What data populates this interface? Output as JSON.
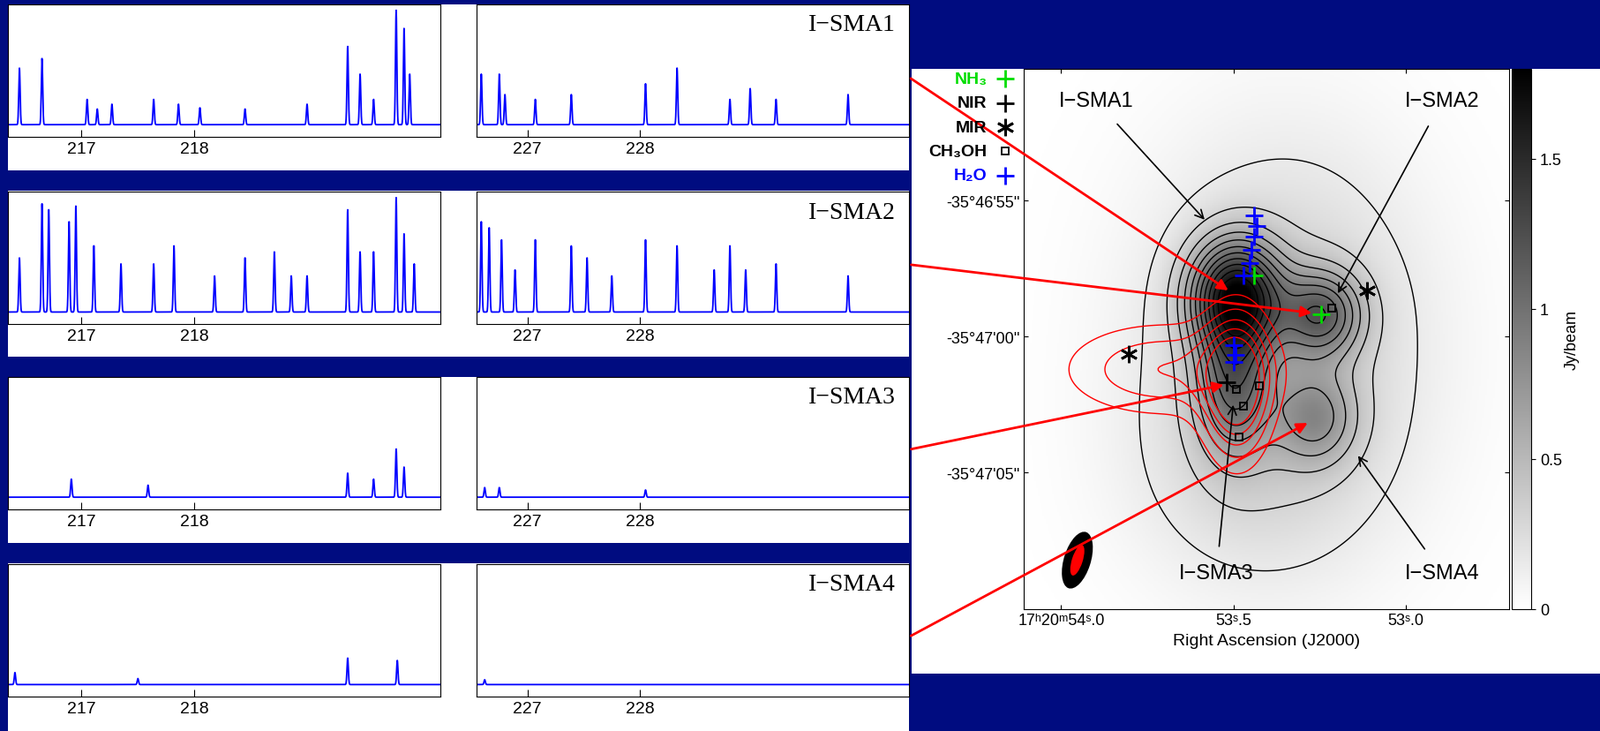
{
  "chart_data": [
    {
      "type": "spectrum",
      "color": "#0000ff",
      "xlim": [
        216.35,
        220.18
      ],
      "xticks": [
        217,
        218
      ],
      "ylim": [
        -0.1,
        1.0
      ],
      "tick_labels": "x",
      "x": [
        216.45,
        216.65,
        217.05,
        217.14,
        217.27,
        217.64,
        217.86,
        218.05,
        218.45,
        219.0,
        219.36,
        219.47,
        219.59,
        219.79,
        219.86,
        219.91
      ],
      "values": [
        0.47,
        0.55,
        0.21,
        0.13,
        0.17,
        0.21,
        0.17,
        0.14,
        0.13,
        0.17,
        0.65,
        0.42,
        0.21,
        0.95,
        0.8,
        0.42
      ]
    },
    {
      "type": "spectrum",
      "title": "I−SMA1",
      "color": "#0000ff",
      "xlim": [
        226.55,
        230.39
      ],
      "xticks": [
        227,
        228
      ],
      "ylim": [
        -0.1,
        1.0
      ],
      "tick_labels": "x",
      "x": [
        226.59,
        226.75,
        226.8,
        227.07,
        227.39,
        228.05,
        228.33,
        228.8,
        228.98,
        229.21,
        229.85
      ],
      "values": [
        0.42,
        0.42,
        0.25,
        0.21,
        0.25,
        0.34,
        0.47,
        0.21,
        0.3,
        0.21,
        0.25
      ]
    },
    {
      "type": "spectrum",
      "color": "#0000ff",
      "xlim": [
        216.35,
        220.18
      ],
      "xticks": [
        217,
        218
      ],
      "ylim": [
        -0.1,
        1.0
      ],
      "tick_labels": "x",
      "x": [
        216.45,
        216.65,
        216.71,
        216.89,
        216.95,
        217.11,
        217.35,
        217.64,
        217.82,
        218.18,
        218.45,
        218.71,
        218.86,
        219.0,
        219.36,
        219.47,
        219.59,
        219.79,
        219.86,
        219.95
      ],
      "values": [
        0.45,
        0.9,
        0.85,
        0.75,
        0.88,
        0.55,
        0.4,
        0.4,
        0.55,
        0.3,
        0.45,
        0.5,
        0.3,
        0.3,
        0.85,
        0.5,
        0.5,
        0.95,
        0.65,
        0.4
      ]
    },
    {
      "type": "spectrum",
      "title": "I−SMA2",
      "color": "#0000ff",
      "xlim": [
        226.55,
        230.39
      ],
      "xticks": [
        227,
        228
      ],
      "ylim": [
        -0.1,
        1.0
      ],
      "tick_labels": "x",
      "x": [
        226.59,
        226.66,
        226.77,
        226.89,
        227.07,
        227.39,
        227.53,
        227.75,
        228.05,
        228.33,
        228.66,
        228.8,
        228.94,
        229.21,
        229.85
      ],
      "values": [
        0.75,
        0.7,
        0.6,
        0.35,
        0.6,
        0.55,
        0.45,
        0.3,
        0.6,
        0.55,
        0.35,
        0.55,
        0.35,
        0.4,
        0.3
      ]
    },
    {
      "type": "spectrum",
      "color": "#0000ff",
      "xlim": [
        216.35,
        220.18
      ],
      "xticks": [
        217,
        218
      ],
      "ylim": [
        -0.1,
        1.0
      ],
      "tick_labels": "x",
      "x": [
        216.91,
        217.59,
        219.36,
        219.59,
        219.79,
        219.86
      ],
      "values": [
        0.15,
        0.1,
        0.2,
        0.15,
        0.4,
        0.25
      ]
    },
    {
      "type": "spectrum",
      "title": "I−SMA3",
      "color": "#0000ff",
      "xlim": [
        226.55,
        230.39
      ],
      "xticks": [
        227,
        228
      ],
      "ylim": [
        -0.1,
        1.0
      ],
      "tick_labels": "x",
      "x": [
        226.62,
        226.75,
        228.05
      ],
      "values": [
        0.08,
        0.08,
        0.06
      ]
    },
    {
      "type": "spectrum",
      "color": "#0000ff",
      "xlim": [
        216.35,
        220.18
      ],
      "xticks": [
        217,
        218
      ],
      "ylim": [
        -0.1,
        1.0
      ],
      "tick_labels": "x",
      "x": [
        216.41,
        217.5,
        219.36,
        219.8
      ],
      "values": [
        0.1,
        0.05,
        0.22,
        0.2
      ]
    },
    {
      "type": "spectrum",
      "title": "I−SMA4",
      "color": "#0000ff",
      "xlim": [
        226.55,
        230.39
      ],
      "xticks": [
        227,
        228
      ],
      "ylim": [
        -0.1,
        1.0
      ],
      "tick_labels": "x",
      "x": [
        226.62
      ],
      "values": [
        0.04
      ]
    },
    {
      "type": "contour",
      "xlabel": "Right Ascension (J2000)",
      "xlim": [
        54.108,
        52.7
      ],
      "xticks": [
        {
          "value": 54.0,
          "label": "17ʰ20ᵐ54ˢ.0"
        },
        {
          "value": 53.5,
          "label": "53ˢ.5"
        },
        {
          "value": 53.0,
          "label": "53ˢ.0"
        }
      ],
      "ylim": [
        -10.0,
        9.85
      ],
      "yticks": [
        {
          "value": 5,
          "label": "-35°46'55''"
        },
        {
          "value": 0,
          "label": "-35°47'00''"
        },
        {
          "value": -5,
          "label": "-35°47'05''"
        }
      ],
      "sources": [
        {
          "name": "I−SMA1",
          "x": 53.491,
          "y": 1.5,
          "peak": 1.45,
          "sigma": [
            1.1,
            1.4
          ]
        },
        {
          "name": "I−SMA2",
          "x": 53.244,
          "y": 0.83,
          "peak": 0.85,
          "sigma": [
            1.0,
            1.1
          ]
        },
        {
          "name": "I−SMA3",
          "x": 53.5,
          "y": -1.7,
          "peak": 0.75,
          "sigma": [
            0.9,
            1.8
          ]
        },
        {
          "name": "I−SMA4",
          "x": 53.259,
          "y": -3.0,
          "peak": 0.5,
          "sigma": [
            1.0,
            1.2
          ]
        }
      ],
      "extended": [
        {
          "x": 53.35,
          "y": 0.0,
          "peak": 0.35,
          "sigma": [
            3.5,
            5.0
          ]
        },
        {
          "x": 53.45,
          "y": -5.0,
          "peak": 0.15,
          "sigma": [
            3.0,
            3.0
          ]
        }
      ],
      "levels": [
        0.15,
        0.3,
        0.45,
        0.6,
        0.75,
        0.9,
        1.05,
        1.2,
        1.35,
        1.5,
        1.65
      ],
      "red_components": [
        {
          "x": 53.49,
          "y": -1.8,
          "peak": 1.0,
          "sigma": [
            0.8,
            1.8
          ]
        },
        {
          "x": 53.7,
          "y": -1.2,
          "peak": 0.5,
          "sigma": [
            2.5,
            1.2
          ]
        }
      ],
      "red_levels": [
        0.2,
        0.35,
        0.5,
        0.65,
        0.8
      ],
      "markers": [
        {
          "name": "NH₃",
          "color": "#00dd00",
          "marker": "plus",
          "points": [
            [
              53.439,
              2.26
            ],
            [
              53.244,
              0.83
            ]
          ]
        },
        {
          "name": "NIR",
          "color": "#000000",
          "marker": "plus",
          "points": [
            [
              53.52,
              -1.69
            ]
          ]
        },
        {
          "name": "MIR",
          "color": "#000000",
          "marker": "asterisk",
          "points": [
            [
              53.805,
              -0.64
            ],
            [
              53.113,
              1.69
            ]
          ]
        },
        {
          "name": "CH₃OH",
          "color": "#000000",
          "marker": "square",
          "points": [
            [
              53.215,
              1.05
            ],
            [
              53.491,
              -1.95
            ],
            [
              53.424,
              -1.8
            ],
            [
              53.483,
              -3.68
            ],
            [
              53.471,
              -2.56
            ]
          ]
        },
        {
          "name": "H₂O",
          "color": "#0000ff",
          "marker": "plus",
          "points": [
            [
              53.439,
              4.44
            ],
            [
              53.433,
              4.06
            ],
            [
              53.439,
              3.68
            ],
            [
              53.448,
              3.2
            ],
            [
              53.453,
              2.71
            ],
            [
              53.471,
              2.26
            ],
            [
              53.5,
              -0.3
            ],
            [
              53.494,
              -0.68
            ],
            [
              53.5,
              -0.94
            ]
          ]
        }
      ],
      "colorbar": {
        "label": "Jy/beam",
        "lim": [
          0,
          1.8
        ],
        "ticks": [
          0,
          0.5,
          1,
          1.5
        ]
      }
    }
  ]
}
